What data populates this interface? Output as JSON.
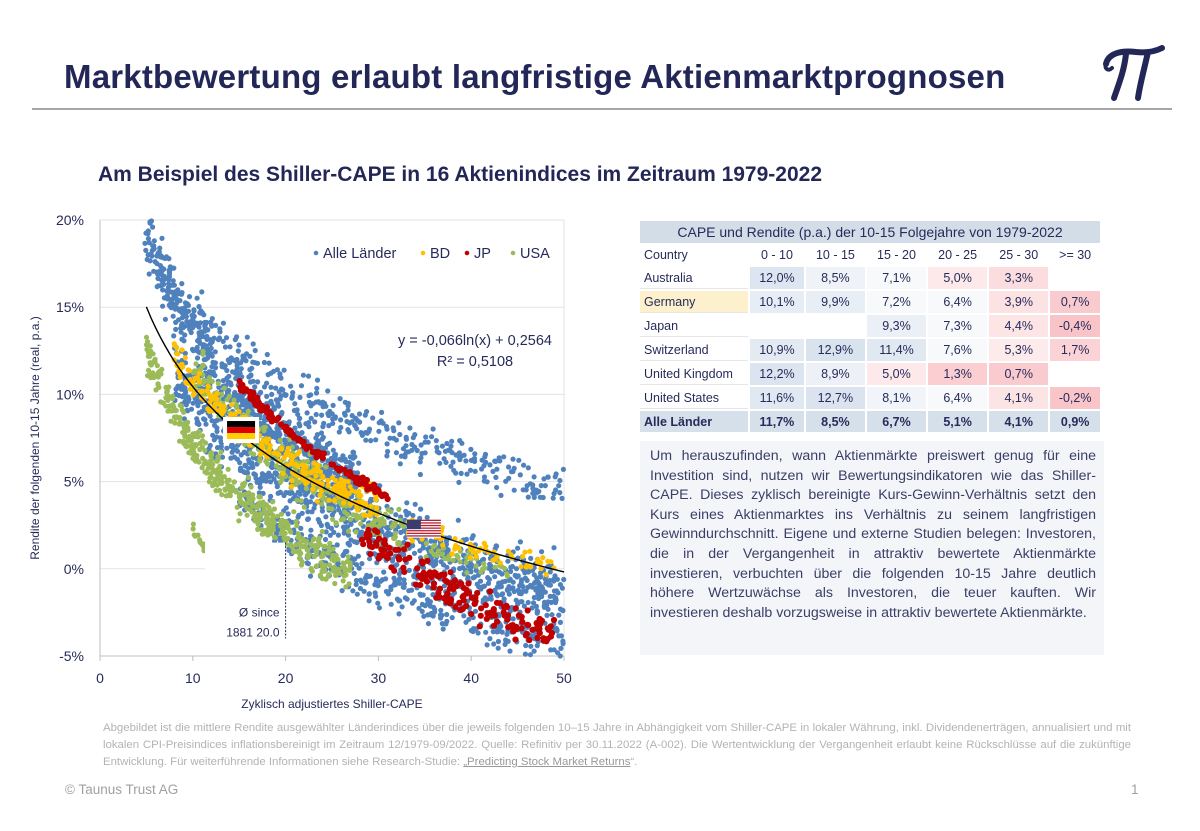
{
  "header": {
    "title": "Marktbewertung erlaubt langfristige Aktienmarktprognosen",
    "logo": "pi-logo",
    "subtitle": "Am Beispiel des Shiller-CAPE in 16 Aktienindices im Zeitraum 1979-2022"
  },
  "chart_data": {
    "type": "scatter",
    "title": "",
    "xlabel": "Zyklisch adjustiertes Shiller-CAPE",
    "ylabel": "Rendite der folgenden 10-15 Jahre (real, p.a.)",
    "xlim": [
      0,
      50
    ],
    "ylim": [
      -0.05,
      0.2
    ],
    "x_ticks": [
      0,
      10,
      20,
      30,
      40,
      50
    ],
    "x_tick_labels": [
      "0",
      "10",
      "20",
      "30",
      "40",
      "50"
    ],
    "y_ticks": [
      -0.05,
      0,
      0.05,
      0.1,
      0.15,
      0.2
    ],
    "y_tick_labels": [
      "-5%",
      "0%",
      "5%",
      "10%",
      "15%",
      "20%"
    ],
    "grid": "horizontal",
    "legend_position": "top-right",
    "legend": [
      {
        "name": "Alle Länder",
        "color": "#4f81bd"
      },
      {
        "name": "BD",
        "color": "#ffc000"
      },
      {
        "name": "JP",
        "color": "#c00000"
      },
      {
        "name": "USA",
        "color": "#9bbb59"
      }
    ],
    "trendline": {
      "type": "logarithmic",
      "a": -0.066,
      "b": 0.2564,
      "x_range": [
        5,
        50
      ],
      "equation_label": "y = -0,066ln(x) + 0,2564",
      "r2_label": "R² = 0,5108",
      "color": "#000000"
    },
    "annotation": {
      "x": 20.0,
      "label_line1": "Ø since",
      "label_line2": "1881 20.0",
      "y_from": -0.04,
      "y_to": 0.015
    },
    "flags": [
      {
        "name": "germany-flag",
        "x": 15.2,
        "y": 0.079
      },
      {
        "name": "usa-flag",
        "x": 34.9,
        "y": 0.023
      }
    ],
    "series": [
      {
        "name": "Alle Länder",
        "color": "#4f81bd",
        "bands": [
          {
            "x_from": 4.8,
            "x_to": 28,
            "a": -0.085,
            "b": 0.33,
            "spread": 0.028,
            "count": 700
          },
          {
            "x_from": 8,
            "x_to": 50,
            "a": -0.07,
            "b": 0.26,
            "spread": 0.03,
            "count": 900
          },
          {
            "x_from": 10,
            "x_to": 50,
            "a": -0.065,
            "b": 0.3,
            "spread": 0.018,
            "count": 300
          },
          {
            "x_from": 15,
            "x_to": 50,
            "a": -0.07,
            "b": 0.23,
            "spread": 0.02,
            "count": 350
          }
        ]
      },
      {
        "name": "USA",
        "color": "#9bbb59",
        "bands": [
          {
            "x_from": 5,
            "x_to": 27,
            "a": -0.075,
            "b": 0.245,
            "spread": 0.018,
            "count": 450
          },
          {
            "x_from": 10,
            "x_to": 33,
            "a": -0.08,
            "b": 0.3,
            "spread": 0.02,
            "count": 300
          },
          {
            "x_from": 10,
            "x_to": 16,
            "a": -0.09,
            "b": 0.23,
            "spread": 0.004,
            "count": 60
          },
          {
            "x_from": 35,
            "x_to": 44,
            "a": -0.06,
            "b": 0.225,
            "spread": 0.008,
            "count": 40
          }
        ]
      },
      {
        "name": "BD",
        "color": "#ffc000",
        "bands": [
          {
            "x_from": 8,
            "x_to": 30,
            "a": -0.066,
            "b": 0.26,
            "spread": 0.014,
            "count": 260
          },
          {
            "x_from": 33,
            "x_to": 49,
            "a": -0.055,
            "b": 0.215,
            "spread": 0.01,
            "count": 70
          }
        ]
      },
      {
        "name": "JP",
        "color": "#c00000",
        "bands": [
          {
            "x_from": 15,
            "x_to": 31,
            "a": -0.09,
            "b": 0.35,
            "spread": 0.004,
            "count": 120
          },
          {
            "x_from": 28,
            "x_to": 49,
            "a": -0.105,
            "b": 0.37,
            "spread": 0.016,
            "count": 180
          }
        ]
      }
    ]
  },
  "table": {
    "title": "CAPE und Rendite (p.a.) der 10-15 Folgejahre von 1979-2022",
    "columns": [
      "Country",
      "0 - 10",
      "10 - 15",
      "15 - 20",
      "20 - 25",
      "25 - 30",
      ">= 30"
    ],
    "rows": [
      {
        "country": "Australia",
        "values": [
          "12,0%",
          "8,5%",
          "7,1%",
          "5,0%",
          "3,3%",
          ""
        ],
        "highlight": false
      },
      {
        "country": "Germany",
        "values": [
          "10,1%",
          "9,9%",
          "7,2%",
          "6,4%",
          "3,9%",
          "0,7%"
        ],
        "highlight": true
      },
      {
        "country": "Japan",
        "values": [
          "",
          "",
          "9,3%",
          "7,3%",
          "4,4%",
          "-0,4%"
        ],
        "highlight": false
      },
      {
        "country": "Switzerland",
        "values": [
          "10,9%",
          "12,9%",
          "11,4%",
          "7,6%",
          "5,3%",
          "1,7%"
        ],
        "highlight": false
      },
      {
        "country": "United Kingdom",
        "values": [
          "12,2%",
          "8,9%",
          "5,0%",
          "1,3%",
          "0,7%",
          ""
        ],
        "highlight": false
      },
      {
        "country": "United States",
        "values": [
          "11,6%",
          "12,7%",
          "8,1%",
          "6,4%",
          "4,1%",
          "-0,2%"
        ],
        "highlight": false
      }
    ],
    "total": {
      "country": "Alle Länder",
      "values": [
        "11,7%",
        "8,5%",
        "6,7%",
        "5,1%",
        "4,1%",
        "0,9%"
      ]
    },
    "colors": {
      "header_bg": "#d2dde8",
      "highlight_row_label": "#fdf0cd",
      "total_bg": "#d6e0ea",
      "high": "#dfe7f0",
      "low": "#f9c6c8"
    }
  },
  "description": "Um herauszufinden, wann Aktienmärkte preiswert genug für eine Investition sind, nutzen wir Bewertungsindikatoren wie das Shiller-CAPE. Dieses zyklisch bereinigte Kurs-Gewinn-Verhältnis setzt den Kurs eines Aktienmarktes ins Verhältnis zu seinem langfristigen Gewinndurchschnitt. Eigene und externe Studien belegen: Investoren, die in der Vergangenheit in attraktiv bewertete Aktienmärkte investieren, verbuchten über die folgenden 10-15 Jahre deutlich höhere Wertzuwächse als Investoren, die teuer kauften. Wir investieren deshalb vorzugsweise in attraktiv bewertete Aktienmärkte.",
  "footnote": {
    "text": "Abgebildet ist die mittlere Rendite ausgewählter Länderindices über die jeweils folgenden 10–15 Jahre in Abhängigkeit vom Shiller-CAPE in lokaler Währung, inkl. Dividendenerträgen, annualisiert und mit lokalen CPI-Preisindices inflationsbereinigt im Zeitraum 12/1979-09/2022. Quelle: Refinitiv per 30.11.2022 (A-002). Die Wertentwicklung der Vergangenheit erlaubt keine Rückschlüsse auf die zukünftige Entwicklung. Für weiterführende Informationen siehe Research-Studie: ",
    "link_text": "„Predicting Stock Market Returns",
    "suffix": "“."
  },
  "footer": {
    "copyright": "© Taunus Trust AG",
    "page_number": "1"
  }
}
